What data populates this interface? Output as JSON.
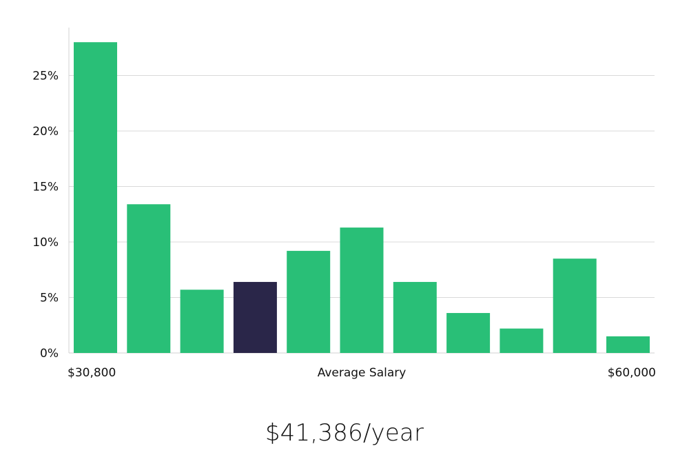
{
  "chart_data": {
    "type": "bar",
    "title": "",
    "xlabel": "Average Salary",
    "ylabel": "",
    "x_start_label": "$30,800",
    "x_end_label": "$60,000",
    "categories": [
      "",
      "",
      "",
      "",
      "",
      "",
      "",
      "",
      "",
      "",
      ""
    ],
    "values": [
      28.0,
      13.4,
      5.7,
      6.4,
      9.2,
      11.3,
      6.4,
      3.6,
      2.2,
      8.5,
      1.5
    ],
    "highlight_index": 3,
    "ylim": [
      0,
      28
    ],
    "yticks": [
      0,
      5,
      10,
      15,
      20,
      25
    ],
    "ytick_labels": [
      "0%",
      "5%",
      "10%",
      "15%",
      "20%",
      "25%"
    ],
    "grid": true,
    "colors": {
      "bar": "#29bf77",
      "highlight": "#2a2649",
      "grid": "#d9d9d9",
      "axis": "#d0d0d0"
    }
  },
  "summary": {
    "salary_text": "$41,386/year"
  }
}
